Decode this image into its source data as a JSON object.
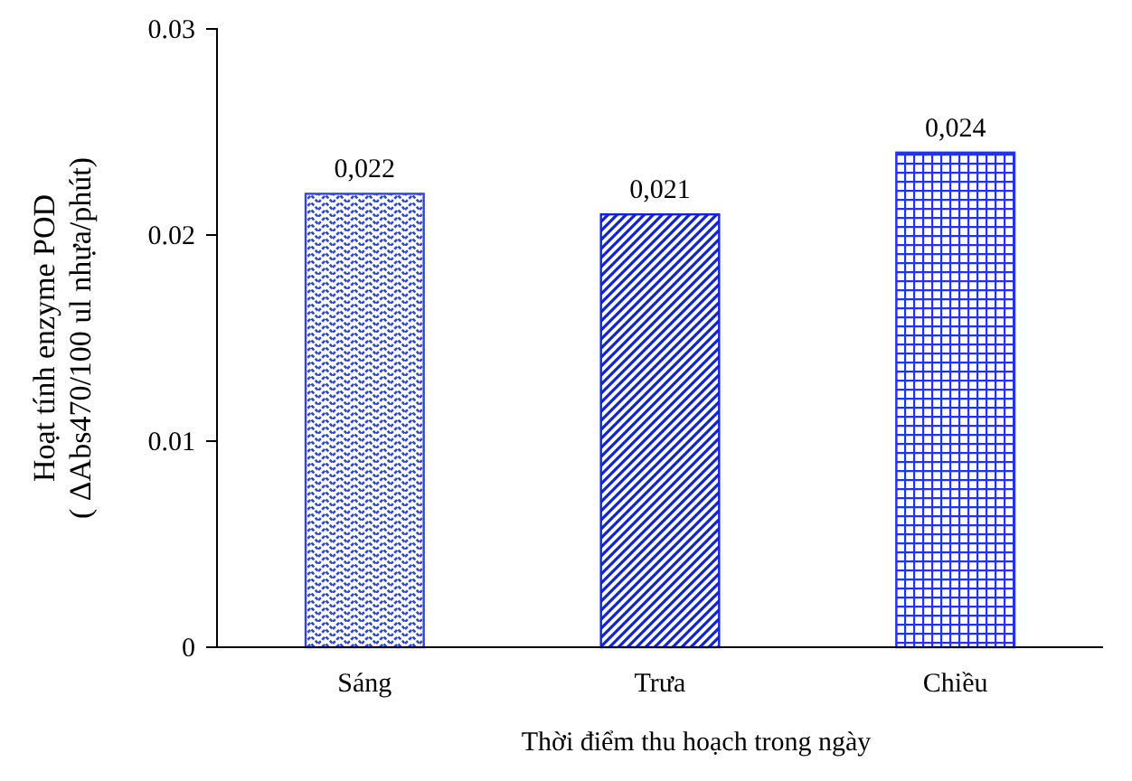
{
  "chart_data": {
    "type": "bar",
    "xlabel": "Thời điểm thu hoạch trong ngày",
    "ylabel": "Hoạt tính enzyme POD\n( ΔAbs470/100 ul nhựa/phút)",
    "categories": [
      "Sáng",
      "Trưa",
      "Chiều"
    ],
    "values": [
      0.022,
      0.021,
      0.024
    ],
    "value_labels": [
      "0,022",
      "0,021",
      "0,024"
    ],
    "colors": [
      "#3344dd",
      "#1122dd",
      "#2233ee"
    ],
    "ylim": [
      0,
      0.03
    ],
    "yticks": [
      0,
      0.01,
      0.02,
      0.03
    ],
    "grid": false
  }
}
